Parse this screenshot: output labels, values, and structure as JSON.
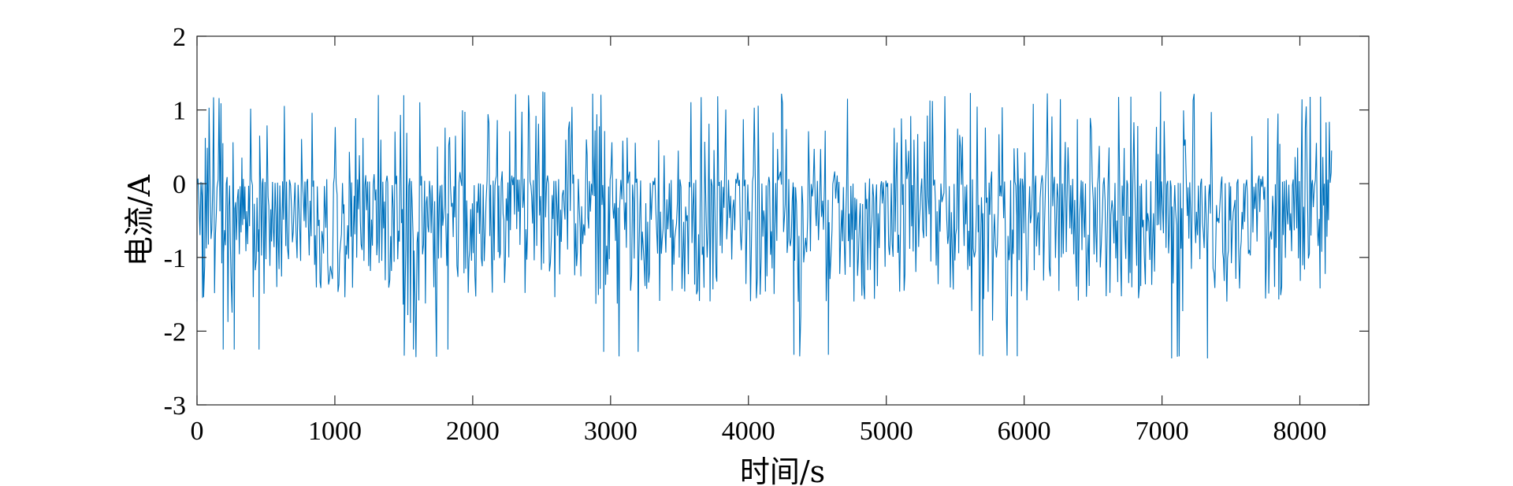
{
  "chart_data": {
    "type": "line",
    "xlabel": "时间/s",
    "ylabel": "电流/A",
    "xlim": [
      0,
      8500
    ],
    "ylim": [
      -3,
      2
    ],
    "xticks": [
      0,
      1000,
      2000,
      3000,
      4000,
      5000,
      6000,
      7000,
      8000
    ],
    "yticks": [
      -3,
      -2,
      -1,
      0,
      1,
      2
    ],
    "grid": false,
    "line_color": "#0072BD",
    "series": [
      {
        "x_start": 0,
        "x_end": 8230,
        "min": -2.37,
        "max": 1.25,
        "description_cycles": 6,
        "key_points": [
          [
            0,
            0
          ],
          [
            40,
            -1.55
          ],
          [
            60,
            0.62
          ],
          [
            120,
            1.17
          ],
          [
            190,
            -2.25
          ],
          [
            270,
            -2.25
          ],
          [
            450,
            -2.25
          ],
          [
            1500,
            1.2
          ],
          [
            1570,
            -2.25
          ],
          [
            1820,
            -2.25
          ],
          [
            2870,
            1.22
          ],
          [
            2950,
            -2.28
          ],
          [
            3200,
            -2.28
          ],
          [
            4240,
            1.22
          ],
          [
            4330,
            -2.32
          ],
          [
            4580,
            -2.32
          ],
          [
            5610,
            1.23
          ],
          [
            5700,
            -2.34
          ],
          [
            5950,
            -2.34
          ],
          [
            6990,
            1.25
          ],
          [
            7070,
            -2.37
          ],
          [
            7330,
            -2.37
          ],
          [
            8150,
            1.18
          ],
          [
            8230,
            0.45
          ]
        ]
      }
    ]
  }
}
